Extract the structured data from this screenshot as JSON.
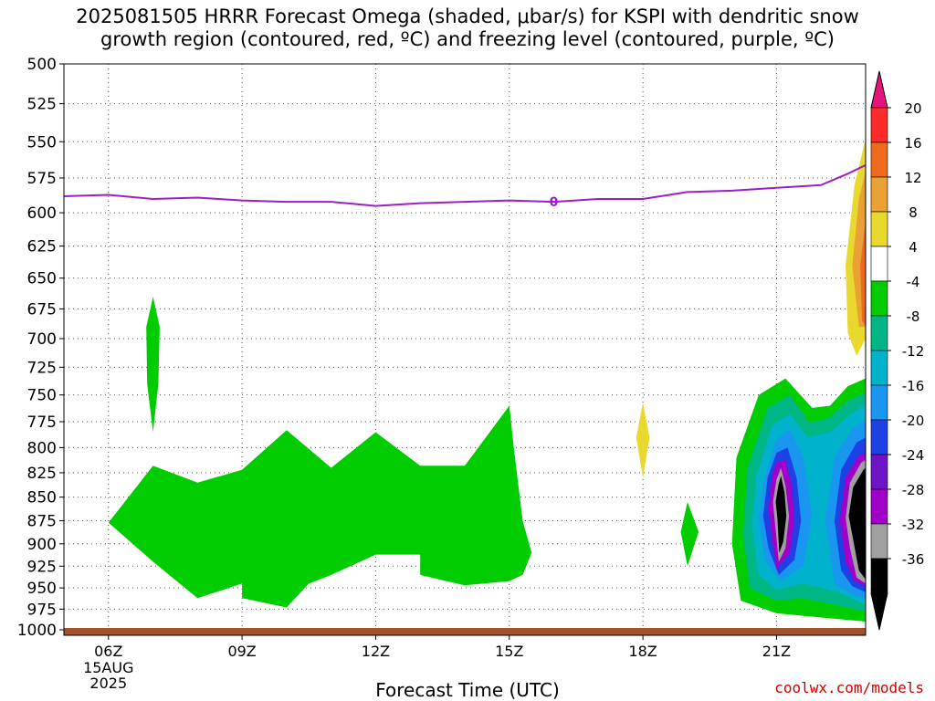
{
  "title_line1": "2025081505 HRRR Forecast Omega (shaded, μbar/s) for KSPI with dendritic snow",
  "title_line2": "growth region (contoured, red, ºC) and freezing level (contoured, purple, ºC)",
  "watermark": "coolwx.com/models",
  "chart_data": {
    "type": "contour",
    "title": "2025081505 HRRR Forecast Omega (shaded, μbar/s) for KSPI with dendritic snow growth region (contoured, red, ºC) and freezing level (contoured, purple, ºC)",
    "xlabel": "Forecast Time (UTC)",
    "ylabel": "",
    "x_ticks": [
      "06Z",
      "09Z",
      "12Z",
      "15Z",
      "18Z",
      "21Z"
    ],
    "x_tick_hours": [
      6,
      9,
      12,
      15,
      18,
      21
    ],
    "x_date_label": [
      "15AUG",
      "2025"
    ],
    "xlim_hours": [
      5,
      23
    ],
    "y_ticks": [
      500,
      525,
      550,
      575,
      600,
      625,
      650,
      675,
      700,
      725,
      750,
      775,
      800,
      825,
      850,
      875,
      900,
      925,
      950,
      975,
      1000
    ],
    "ylim_hPa": [
      500,
      1000
    ],
    "y_scale": "log-pressure",
    "grid": true,
    "colorbar": {
      "labels": [
        20,
        16,
        12,
        8,
        4,
        -4,
        -8,
        -12,
        -16,
        -20,
        -24,
        -28,
        -32,
        -36
      ],
      "colors": [
        "#ff2a2a",
        "#f06a1e",
        "#e8a132",
        "#e9d92e",
        "#ffffff",
        "#00cc00",
        "#00b684",
        "#00b2cc",
        "#1996f0",
        "#1e41e6",
        "#6e14c8",
        "#a000c8",
        "#a0a0a0",
        "#000000"
      ],
      "top_arrow_color": "#e6147a",
      "bottom_arrow_color": "#000000"
    },
    "freezing_level": {
      "color": "#9c1ec8",
      "label": "0",
      "points": [
        [
          5.0,
          588
        ],
        [
          6.0,
          587
        ],
        [
          7.0,
          590
        ],
        [
          8.0,
          589
        ],
        [
          9.0,
          591
        ],
        [
          10.0,
          592
        ],
        [
          11.0,
          592
        ],
        [
          12.0,
          595
        ],
        [
          13.0,
          593
        ],
        [
          14.0,
          592
        ],
        [
          15.0,
          591
        ],
        [
          16.0,
          592
        ],
        [
          17.0,
          590
        ],
        [
          18.0,
          590
        ],
        [
          19.0,
          585
        ],
        [
          20.0,
          584
        ],
        [
          21.0,
          582
        ],
        [
          22.0,
          580
        ],
        [
          22.6,
          572
        ],
        [
          23.0,
          566
        ]
      ]
    },
    "omega_regions": [
      {
        "value": -4,
        "color": "#00cc00",
        "points": [
          [
            7.0,
            665
          ],
          [
            7.15,
            690
          ],
          [
            7.12,
            740
          ],
          [
            7.0,
            785
          ],
          [
            6.87,
            740
          ],
          [
            6.85,
            690
          ]
        ]
      },
      {
        "value": -4,
        "color": "#00cc00",
        "points": [
          [
            6.0,
            877
          ],
          [
            7.0,
            818
          ],
          [
            8.0,
            835
          ],
          [
            9.0,
            822
          ],
          [
            10.0,
            783
          ],
          [
            11.0,
            820
          ],
          [
            12.0,
            785
          ],
          [
            13.0,
            818
          ],
          [
            14.0,
            818
          ],
          [
            15.0,
            760
          ],
          [
            15.1,
            800
          ],
          [
            15.3,
            875
          ],
          [
            15.5,
            910
          ],
          [
            15.3,
            935
          ],
          [
            15.0,
            942
          ],
          [
            14.0,
            947
          ],
          [
            13.0,
            935
          ],
          [
            13.0,
            912
          ],
          [
            12.0,
            912
          ],
          [
            11.0,
            935
          ],
          [
            10.5,
            945
          ],
          [
            10.0,
            973
          ],
          [
            9.0,
            962
          ],
          [
            9.0,
            945
          ],
          [
            8.0,
            962
          ],
          [
            7.0,
            920
          ]
        ]
      },
      {
        "value": 4,
        "color": "#e9d92e",
        "points": [
          [
            18.0,
            757
          ],
          [
            18.15,
            790
          ],
          [
            18.0,
            830
          ],
          [
            17.85,
            790
          ]
        ]
      },
      {
        "value": -4,
        "color": "#00cc00",
        "points": [
          [
            19.0,
            855
          ],
          [
            19.25,
            887
          ],
          [
            19.0,
            925
          ],
          [
            18.85,
            887
          ]
        ]
      },
      {
        "value": -4,
        "color": "#00cc00",
        "points": [
          [
            20.2,
            965
          ],
          [
            20.0,
            900
          ],
          [
            20.1,
            810
          ],
          [
            20.6,
            750
          ],
          [
            21.2,
            735
          ],
          [
            21.8,
            762
          ],
          [
            22.2,
            760
          ],
          [
            22.6,
            742
          ],
          [
            23.0,
            735
          ],
          [
            23.0,
            990
          ],
          [
            22.0,
            985
          ],
          [
            21.0,
            980
          ]
        ]
      },
      {
        "value": -8,
        "color": "#00b684",
        "points": [
          [
            20.4,
            950
          ],
          [
            20.25,
            890
          ],
          [
            20.35,
            820
          ],
          [
            20.8,
            762
          ],
          [
            21.3,
            750
          ],
          [
            21.75,
            776
          ],
          [
            22.2,
            771
          ],
          [
            22.6,
            755
          ],
          [
            23.0,
            748
          ],
          [
            23.0,
            978
          ],
          [
            22.3,
            970
          ],
          [
            21.6,
            962
          ],
          [
            21.0,
            965
          ]
        ]
      },
      {
        "value": -12,
        "color": "#00b2cc",
        "points": [
          [
            20.6,
            935
          ],
          [
            20.45,
            880
          ],
          [
            20.55,
            828
          ],
          [
            20.9,
            778
          ],
          [
            21.3,
            768
          ],
          [
            21.7,
            790
          ],
          [
            22.2,
            785
          ],
          [
            22.6,
            770
          ],
          [
            23.0,
            758
          ],
          [
            23.0,
            970
          ],
          [
            22.4,
            955
          ],
          [
            21.6,
            945
          ],
          [
            21.0,
            952
          ]
        ]
      },
      {
        "value": -16,
        "color": "#1996f0",
        "points": [
          [
            20.75,
            920
          ],
          [
            20.6,
            875
          ],
          [
            20.7,
            835
          ],
          [
            21.0,
            792
          ],
          [
            21.3,
            782
          ],
          [
            21.6,
            810
          ],
          [
            21.8,
            870
          ],
          [
            21.6,
            925
          ],
          [
            21.1,
            942
          ]
        ]
      },
      {
        "value": -16,
        "color": "#1996f0",
        "points": [
          [
            22.3,
            945
          ],
          [
            22.1,
            875
          ],
          [
            22.3,
            810
          ],
          [
            22.7,
            782
          ],
          [
            23.0,
            772
          ],
          [
            23.0,
            962
          ],
          [
            22.7,
            958
          ]
        ]
      },
      {
        "value": -20,
        "color": "#1e41e6",
        "points": [
          [
            20.82,
            905
          ],
          [
            20.7,
            870
          ],
          [
            20.8,
            830
          ],
          [
            21.0,
            805
          ],
          [
            21.25,
            800
          ],
          [
            21.45,
            830
          ],
          [
            21.55,
            875
          ],
          [
            21.4,
            918
          ],
          [
            21.05,
            935
          ]
        ]
      },
      {
        "value": -20,
        "color": "#1e41e6",
        "points": [
          [
            22.45,
            930
          ],
          [
            22.3,
            875
          ],
          [
            22.45,
            822
          ],
          [
            22.8,
            795
          ],
          [
            23.0,
            790
          ],
          [
            23.0,
            955
          ],
          [
            22.7,
            948
          ]
        ]
      },
      {
        "value": -28,
        "color": "#a000c8",
        "points": [
          [
            20.9,
            895
          ],
          [
            20.82,
            862
          ],
          [
            20.9,
            828
          ],
          [
            21.0,
            815
          ],
          [
            21.2,
            812
          ],
          [
            21.35,
            840
          ],
          [
            21.4,
            875
          ],
          [
            21.3,
            910
          ],
          [
            21.0,
            928
          ]
        ]
      },
      {
        "value": -28,
        "color": "#a000c8",
        "points": [
          [
            22.55,
            920
          ],
          [
            22.42,
            875
          ],
          [
            22.55,
            830
          ],
          [
            22.85,
            808
          ],
          [
            23.0,
            805
          ],
          [
            23.0,
            948
          ],
          [
            22.75,
            942
          ]
        ]
      },
      {
        "value": -32,
        "color": "#a0a0a0",
        "points": [
          [
            20.97,
            880
          ],
          [
            20.92,
            855
          ],
          [
            21.0,
            832
          ],
          [
            21.1,
            820
          ],
          [
            21.2,
            838
          ],
          [
            21.28,
            870
          ],
          [
            21.2,
            905
          ],
          [
            21.05,
            920
          ]
        ]
      },
      {
        "value": -32,
        "color": "#a0a0a0",
        "points": [
          [
            22.65,
            905
          ],
          [
            22.55,
            872
          ],
          [
            22.65,
            835
          ],
          [
            22.9,
            815
          ],
          [
            23.0,
            812
          ],
          [
            23.0,
            945
          ],
          [
            22.8,
            938
          ]
        ]
      },
      {
        "value": -36,
        "color": "#000000",
        "points": [
          [
            21.02,
            872
          ],
          [
            20.98,
            855
          ],
          [
            21.04,
            838
          ],
          [
            21.1,
            828
          ],
          [
            21.18,
            845
          ],
          [
            21.22,
            870
          ],
          [
            21.15,
            898
          ],
          [
            21.06,
            910
          ]
        ]
      },
      {
        "value": -36,
        "color": "#000000",
        "points": [
          [
            22.72,
            895
          ],
          [
            22.62,
            870
          ],
          [
            22.72,
            840
          ],
          [
            22.95,
            822
          ],
          [
            23.0,
            820
          ],
          [
            23.0,
            940
          ],
          [
            22.85,
            930
          ]
        ]
      },
      {
        "value": 4,
        "color": "#e9d92e",
        "points": [
          [
            22.6,
            695
          ],
          [
            22.55,
            640
          ],
          [
            22.75,
            580
          ],
          [
            23.0,
            548
          ],
          [
            23.0,
            700
          ],
          [
            22.8,
            715
          ]
        ]
      },
      {
        "value": 8,
        "color": "#e8a132",
        "points": [
          [
            22.7,
            640
          ],
          [
            22.85,
            590
          ],
          [
            23.0,
            570
          ],
          [
            23.0,
            690
          ],
          [
            22.85,
            690
          ]
        ]
      },
      {
        "value": 12,
        "color": "#f06a1e",
        "points": [
          [
            22.88,
            640
          ],
          [
            23.0,
            605
          ],
          [
            23.0,
            690
          ],
          [
            22.92,
            685
          ]
        ]
      }
    ],
    "ground_color": "#a0522d"
  }
}
